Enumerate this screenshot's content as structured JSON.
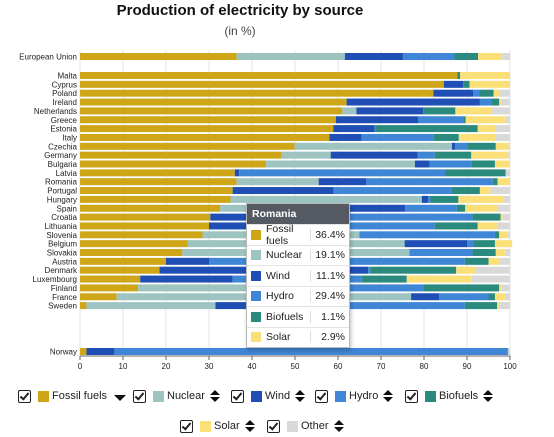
{
  "header": {
    "title": "Production of electricity by source",
    "subtitle": "(in %)"
  },
  "chart_data": {
    "type": "bar",
    "orientation": "horizontal",
    "stacked": true,
    "xlim": [
      0,
      100
    ],
    "xticks": [
      0,
      10,
      20,
      30,
      40,
      50,
      60,
      70,
      80,
      90,
      100
    ],
    "sources": [
      "Fossil fuels",
      "Nuclear",
      "Wind",
      "Hydro",
      "Biofuels",
      "Solar",
      "Other"
    ],
    "colors": {
      "Fossil fuels": "#d0a619",
      "Nuclear": "#9dc4c1",
      "Wind": "#1f4fb5",
      "Hydro": "#3f86d6",
      "Biofuels": "#2b8a7e",
      "Solar": "#fbe07a",
      "Other": "#d9d9d9"
    },
    "rows": [
      {
        "country": "European Union",
        "values": [
          36.4,
          25.2,
          13.5,
          12.0,
          5.5,
          5.5,
          1.9
        ]
      },
      {
        "country": "Malta",
        "values": [
          87.8,
          0,
          0,
          0,
          0.6,
          11.6,
          0
        ]
      },
      {
        "country": "Cyprus",
        "values": [
          84.6,
          0,
          4.5,
          0,
          1.5,
          9.4,
          0
        ]
      },
      {
        "country": "Poland",
        "values": [
          82.2,
          0,
          9.2,
          1.5,
          3.3,
          1.4,
          2.4
        ]
      },
      {
        "country": "Ireland",
        "values": [
          62.0,
          0,
          31.0,
          2.7,
          1.8,
          0.6,
          1.9
        ]
      },
      {
        "country": "Netherlands",
        "values": [
          61.0,
          3.3,
          15.5,
          0,
          7.5,
          8.5,
          4.2
        ]
      },
      {
        "country": "Greece",
        "values": [
          59.5,
          0,
          19.1,
          10.5,
          0.6,
          9.3,
          1.0
        ]
      },
      {
        "country": "Estonia",
        "values": [
          58.9,
          0,
          9.6,
          0.2,
          23.8,
          4.0,
          3.5
        ]
      },
      {
        "country": "Italy",
        "values": [
          58.0,
          0,
          7.5,
          16.8,
          5.8,
          8.5,
          3.4
        ]
      },
      {
        "country": "Czechia",
        "values": [
          49.9,
          36.6,
          0.7,
          2.9,
          6.6,
          3.0,
          0.3
        ]
      },
      {
        "country": "Germany",
        "values": [
          46.9,
          11.4,
          20.2,
          4.0,
          8.5,
          8.6,
          0.4
        ]
      },
      {
        "country": "Bulgaria",
        "values": [
          43.3,
          34.6,
          3.4,
          9.7,
          5.5,
          3.5,
          0
        ]
      },
      {
        "country": "Latvia",
        "values": [
          36.0,
          0,
          1.0,
          48.0,
          14.0,
          0,
          1.0
        ]
      },
      {
        "country": "Romania",
        "values": [
          36.4,
          19.1,
          11.1,
          29.4,
          1.1,
          2.9,
          0
        ]
      },
      {
        "country": "Portugal",
        "values": [
          35.5,
          0,
          23.5,
          27.5,
          6.5,
          2.5,
          4.5
        ]
      },
      {
        "country": "Hungary",
        "values": [
          35.0,
          44.5,
          1.5,
          0.5,
          6.5,
          10.5,
          1.5
        ]
      },
      {
        "country": "Spain",
        "values": [
          32.6,
          21.5,
          21.5,
          12.0,
          2.0,
          7.5,
          2.9
        ]
      },
      {
        "country": "Croatia",
        "values": [
          30.3,
          0,
          13.0,
          48.0,
          6.5,
          0.5,
          1.7
        ]
      },
      {
        "country": "Lithuania",
        "values": [
          30.0,
          0,
          31.0,
          21.5,
          10.0,
          4.5,
          3.0
        ]
      },
      {
        "country": "Slovenia",
        "values": [
          28.5,
          36.5,
          0,
          31.5,
          1.0,
          2.0,
          0.5
        ]
      },
      {
        "country": "Belgium",
        "values": [
          25.0,
          50.5,
          14.5,
          1.5,
          5.0,
          4.0,
          0
        ]
      },
      {
        "country": "Slovakia",
        "values": [
          23.8,
          52.8,
          0,
          14.7,
          5.4,
          2.3,
          1.0
        ]
      },
      {
        "country": "Austria",
        "values": [
          20.0,
          0,
          10.0,
          59.5,
          5.5,
          2.5,
          2.5
        ]
      },
      {
        "country": "Denmark",
        "values": [
          18.5,
          0,
          48.5,
          0.5,
          20.0,
          4.5,
          8.0
        ]
      },
      {
        "country": "Luxembourg",
        "values": [
          14.0,
          0,
          21.5,
          30.0,
          10.5,
          15.0,
          9.0
        ]
      },
      {
        "country": "Finland",
        "values": [
          13.5,
          34.5,
          9.5,
          22.5,
          17.5,
          0.5,
          2.0
        ]
      },
      {
        "country": "France",
        "values": [
          8.5,
          68.5,
          6.5,
          11.5,
          1.5,
          2.5,
          1.0
        ]
      },
      {
        "country": "Sweden",
        "values": [
          1.5,
          30.0,
          12.5,
          45.5,
          7.5,
          0.5,
          2.5
        ]
      },
      {
        "country": "Norway",
        "values": [
          1.5,
          0,
          6.5,
          91.5,
          0.1,
          0,
          0.4
        ]
      }
    ]
  },
  "tooltip": {
    "country": "Romania",
    "rows": [
      {
        "name": "Fossil fuels",
        "value": "36.4%"
      },
      {
        "name": "Nuclear",
        "value": "19.1%"
      },
      {
        "name": "Wind",
        "value": "11.1%"
      },
      {
        "name": "Hydro",
        "value": "29.4%"
      },
      {
        "name": "Biofuels",
        "value": "1.1%"
      },
      {
        "name": "Solar",
        "value": "2.9%"
      }
    ]
  },
  "legend": {
    "items": [
      {
        "label": "Fossil fuels",
        "sort": "desc"
      },
      {
        "label": "Nuclear",
        "sort": "both"
      },
      {
        "label": "Wind",
        "sort": "both"
      },
      {
        "label": "Hydro",
        "sort": "both"
      },
      {
        "label": "Biofuels",
        "sort": "both"
      },
      {
        "label": "Solar",
        "sort": "both"
      },
      {
        "label": "Other",
        "sort": "both"
      }
    ]
  }
}
